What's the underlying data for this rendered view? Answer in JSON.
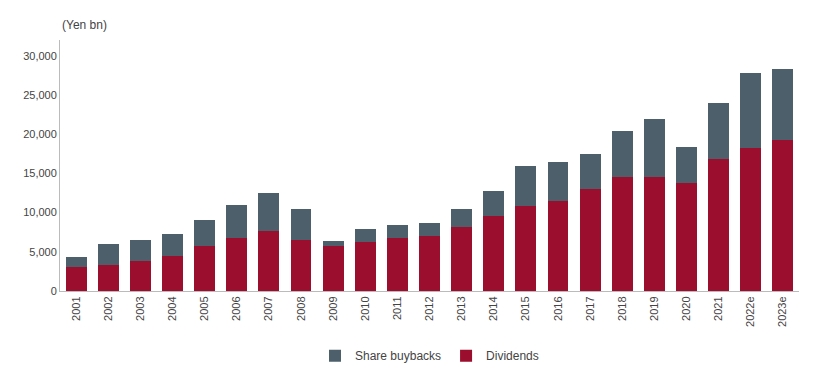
{
  "chart_data": {
    "type": "bar",
    "stacked": true,
    "ylabel": "(Yen bn)",
    "categories": [
      "2001",
      "2002",
      "2003",
      "2004",
      "2005",
      "2006",
      "2007",
      "2008",
      "2009",
      "2010",
      "2011",
      "2012",
      "2013",
      "2014",
      "2015",
      "2016",
      "2017",
      "2018",
      "2019",
      "2020",
      "2021",
      "2022e",
      "2023e"
    ],
    "series": [
      {
        "name": "Dividends",
        "color": "#9B0E2E",
        "values": [
          3100,
          3300,
          3800,
          4500,
          5800,
          6800,
          7600,
          6500,
          5700,
          6300,
          6700,
          7000,
          8200,
          9500,
          10800,
          11500,
          13000,
          14500,
          14500,
          13800,
          16800,
          18200,
          19300
        ]
      },
      {
        "name": "Share buybacks",
        "color": "#4D5F6B",
        "values": [
          1200,
          2700,
          2700,
          2800,
          3300,
          4200,
          4900,
          4000,
          700,
          1600,
          1700,
          1700,
          2200,
          3300,
          5100,
          4900,
          4500,
          5900,
          7400,
          4500,
          7200,
          9600,
          9000
        ]
      }
    ],
    "ylim": [
      0,
      32000
    ],
    "yticks": [
      0,
      {
        "value": 5000,
        "label": "5,000"
      },
      {
        "value": 10000,
        "label": "10,000"
      },
      {
        "value": 15000,
        "label": "15,000"
      },
      {
        "value": 20000,
        "label": "20,000"
      },
      {
        "value": 25000,
        "label": "25,000"
      },
      {
        "value": 30000,
        "label": "30,000"
      }
    ],
    "grid": false,
    "legend": "bottom"
  }
}
